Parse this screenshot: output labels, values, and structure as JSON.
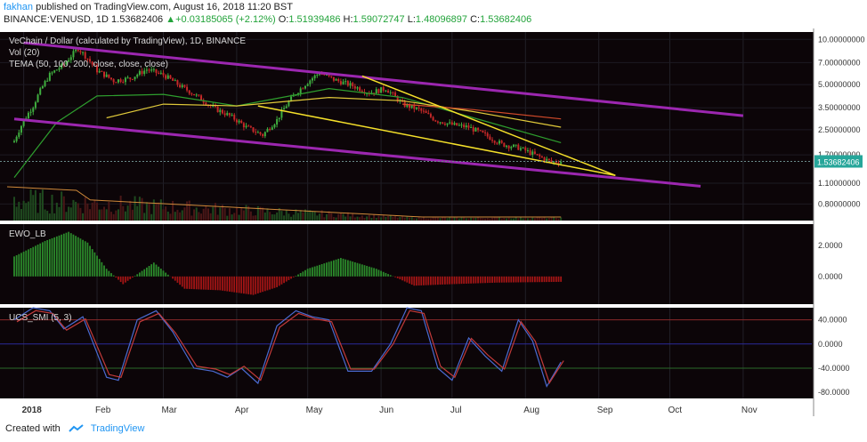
{
  "header": {
    "author": "fakhan",
    "published": "published on TradingView.com, August 16, 2018 11:20 BST",
    "symbol": "BINANCE:VENUSD, 1D",
    "last": "1.53682406",
    "change": "+0.03185065 (+2.12%)",
    "o_label": "O:",
    "o_value": "1.51939486",
    "h_label": "H:",
    "h_value": "1.59072747",
    "l_label": "L:",
    "l_value": "1.48096897",
    "c_label": "C:",
    "c_value": "1.53682406"
  },
  "footer": {
    "created": "Created with",
    "brand": "TradingView"
  },
  "colors": {
    "bg": "#0c0508",
    "channel": "#9c27b0",
    "wedge": "#f5e02a",
    "up": "#2b8a2b",
    "down": "#a31515",
    "price_label": "#26a69a"
  },
  "chart_data": {
    "type": "line",
    "x_axis": {
      "labels": [
        "2018",
        "Feb",
        "Mar",
        "Apr",
        "May",
        "Jun",
        "Jul",
        "Aug",
        "Sep",
        "Oct",
        "Nov"
      ],
      "range": [
        "2017-12-25",
        "2018-11-30"
      ]
    },
    "panes": [
      {
        "legend": [
          "VeChain / Dollar (calculated by TradingView), 1D, BINANCE",
          "Vol (20)",
          "TEMA (50, 100, 200, close, close, close)"
        ],
        "y_axis": {
          "scale": "log",
          "ticks": [
            "10.00000000",
            "7.00000000",
            "5.00000000",
            "3.50000000",
            "2.50000000",
            "1.70000000",
            "1.10000000",
            "0.80000000"
          ]
        },
        "last_price_label": "1.53682406",
        "price": {
          "dates": [
            "2017-12-28",
            "2018-01-05",
            "2018-01-12",
            "2018-01-18",
            "2018-01-24",
            "2018-02-01",
            "2018-02-08",
            "2018-02-15",
            "2018-02-22",
            "2018-03-01",
            "2018-03-08",
            "2018-03-15",
            "2018-03-22",
            "2018-03-29",
            "2018-04-05",
            "2018-04-12",
            "2018-04-18",
            "2018-04-25",
            "2018-05-01",
            "2018-05-06",
            "2018-05-12",
            "2018-05-20",
            "2018-05-27",
            "2018-06-03",
            "2018-06-10",
            "2018-06-17",
            "2018-06-24",
            "2018-07-01",
            "2018-07-08",
            "2018-07-15",
            "2018-07-22",
            "2018-07-29",
            "2018-08-05",
            "2018-08-12",
            "2018-08-16"
          ],
          "values": [
            2.1,
            3.6,
            5.8,
            6.8,
            8.7,
            6.2,
            5.3,
            5.5,
            6.3,
            5.8,
            4.9,
            4.2,
            3.5,
            3.1,
            2.6,
            2.3,
            2.9,
            4.2,
            5.2,
            6.0,
            5.4,
            4.9,
            4.4,
            4.7,
            3.7,
            3.4,
            2.9,
            2.7,
            2.6,
            2.3,
            2.0,
            1.9,
            1.7,
            1.52,
            1.537
          ]
        },
        "tema": [
          {
            "name": "TEMA 50",
            "color": "#2e9e2e",
            "dates": [
              "2017-12-28",
              "2018-01-15",
              "2018-02-01",
              "2018-03-01",
              "2018-04-01",
              "2018-05-10",
              "2018-06-10",
              "2018-07-10",
              "2018-08-16"
            ],
            "values": [
              1.2,
              2.8,
              4.2,
              4.3,
              3.6,
              4.7,
              4.1,
              3.0,
              2.05
            ]
          },
          {
            "name": "TEMA 100",
            "color": "#e0c93a",
            "dates": [
              "2018-02-05",
              "2018-03-01",
              "2018-04-01",
              "2018-05-10",
              "2018-06-10",
              "2018-07-10",
              "2018-08-16"
            ],
            "values": [
              3.0,
              3.7,
              3.6,
              4.1,
              3.9,
              3.3,
              2.6
            ]
          },
          {
            "name": "TEMA 200",
            "color": "#d24a2a",
            "dates": [
              "2018-06-10",
              "2018-07-10",
              "2018-08-16"
            ],
            "values": [
              3.7,
              3.4,
              2.95
            ]
          }
        ],
        "channel": [
          {
            "dates": [
              "2018-01-01",
              "2018-11-01"
            ],
            "values": [
              9.5,
              3.1
            ]
          },
          {
            "dates": [
              "2017-12-28",
              "2018-10-14"
            ],
            "values": [
              2.95,
              1.05
            ]
          }
        ],
        "wedge": [
          {
            "dates": [
              "2018-05-24",
              "2018-09-08"
            ],
            "values": [
              5.7,
              1.24
            ]
          },
          {
            "dates": [
              "2018-04-10",
              "2018-09-08"
            ],
            "values": [
              3.6,
              1.24
            ]
          }
        ]
      },
      {
        "legend": [
          "EWO_LB"
        ],
        "y_axis": {
          "ticks": [
            "2.0000",
            "0.0000"
          ]
        },
        "histogram": {
          "dates": [
            "2017-12-28",
            "2018-01-10",
            "2018-01-20",
            "2018-01-28",
            "2018-02-05",
            "2018-02-12",
            "2018-02-25",
            "2018-03-10",
            "2018-03-25",
            "2018-04-08",
            "2018-04-18",
            "2018-05-01",
            "2018-05-15",
            "2018-05-30",
            "2018-06-15",
            "2018-07-01",
            "2018-07-20",
            "2018-08-16"
          ],
          "values": [
            1.3,
            2.3,
            2.9,
            2.2,
            0.5,
            -0.5,
            0.9,
            -0.8,
            -0.9,
            -1.2,
            -0.7,
            0.5,
            1.2,
            0.5,
            -0.6,
            -0.5,
            -0.4,
            -0.35
          ]
        }
      },
      {
        "legend": [
          "UCS_SMI (5, 3)"
        ],
        "y_axis": {
          "ticks": [
            "40.0000",
            "0.0000",
            "-40.0000",
            "-80.0000"
          ]
        },
        "levels": [
          40,
          0,
          -40
        ],
        "smi": {
          "dates": [
            "2017-12-28",
            "2018-01-05",
            "2018-01-12",
            "2018-01-18",
            "2018-01-26",
            "2018-02-05",
            "2018-02-10",
            "2018-02-18",
            "2018-02-26",
            "2018-03-05",
            "2018-03-14",
            "2018-03-22",
            "2018-03-28",
            "2018-04-03",
            "2018-04-10",
            "2018-04-18",
            "2018-04-26",
            "2018-05-03",
            "2018-05-10",
            "2018-05-18",
            "2018-05-28",
            "2018-06-05",
            "2018-06-12",
            "2018-06-18",
            "2018-06-25",
            "2018-07-01",
            "2018-07-08",
            "2018-07-15",
            "2018-07-22",
            "2018-07-29",
            "2018-08-04",
            "2018-08-10",
            "2018-08-16"
          ],
          "values": [
            40,
            60,
            55,
            25,
            45,
            -55,
            -60,
            40,
            55,
            20,
            -40,
            -45,
            -55,
            -40,
            -65,
            30,
            55,
            45,
            40,
            -45,
            -45,
            0,
            60,
            55,
            -40,
            -60,
            10,
            -20,
            -45,
            40,
            5,
            -70,
            -30
          ]
        }
      }
    ]
  }
}
